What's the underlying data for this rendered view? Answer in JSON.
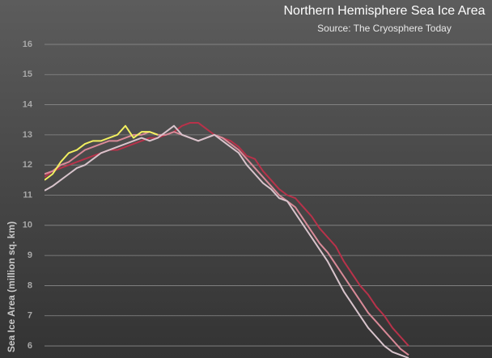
{
  "chart_data": {
    "type": "line",
    "title": "Northern Hemisphere Sea Ice Area",
    "subtitle": "Source: The Cryosphere Today",
    "y_label": "Sea Ice Area (million sq. km)",
    "ylim": [
      5.6,
      16.4
    ],
    "yticks": [
      6,
      7,
      8,
      9,
      10,
      11,
      12,
      13,
      14,
      15,
      16
    ],
    "grid": true,
    "series": [
      {
        "color": "#b8324a",
        "values": [
          11.6,
          11.8,
          11.9,
          12.0,
          12.1,
          12.2,
          12.3,
          12.4,
          12.5,
          12.5,
          12.6,
          12.7,
          12.8,
          12.9,
          12.9,
          13.0,
          13.1,
          13.3,
          13.4,
          13.4,
          13.2,
          13.0,
          12.9,
          12.8,
          12.6,
          12.3,
          12.2,
          11.8,
          11.5,
          11.2,
          11.0,
          10.9,
          10.6,
          10.3,
          9.9,
          9.6,
          9.3,
          8.8,
          8.4,
          8.0,
          7.7,
          7.3,
          7.0,
          6.6,
          6.3,
          6.0
        ]
      },
      {
        "color": "#d98a98",
        "values": [
          11.7,
          11.8,
          12.0,
          12.1,
          12.3,
          12.5,
          12.6,
          12.7,
          12.8,
          12.8,
          12.9,
          13.0,
          13.0,
          13.1,
          13.0,
          13.0,
          13.1,
          13.0,
          12.9,
          12.8,
          12.9,
          13.0,
          12.9,
          12.7,
          12.5,
          12.2,
          11.9,
          11.6,
          11.3,
          11.0,
          10.8,
          10.6,
          10.2,
          9.8,
          9.4,
          9.1,
          8.7,
          8.3,
          7.9,
          7.5,
          7.1,
          6.8,
          6.5,
          6.2,
          5.9,
          5.7
        ]
      },
      {
        "color": "#d8c4cc",
        "values": [
          11.15,
          11.3,
          11.5,
          11.7,
          11.9,
          12.0,
          12.2,
          12.4,
          12.5,
          12.6,
          12.7,
          12.8,
          12.9,
          12.8,
          12.9,
          13.1,
          13.3,
          13.0,
          12.9,
          12.8,
          12.9,
          13.0,
          12.8,
          12.6,
          12.4,
          12.0,
          11.7,
          11.4,
          11.2,
          10.9,
          10.8,
          10.4,
          10.0,
          9.6,
          9.2,
          8.8,
          8.3,
          7.8,
          7.4,
          7.0,
          6.6,
          6.3,
          6.0,
          5.8,
          5.7,
          5.6
        ]
      },
      {
        "color": "#f2f060",
        "values": [
          11.5,
          11.7,
          12.1,
          12.4,
          12.5,
          12.7,
          12.8,
          12.8,
          12.9,
          13.0,
          13.3,
          12.9,
          13.1,
          13.1,
          13.0
        ]
      }
    ]
  }
}
